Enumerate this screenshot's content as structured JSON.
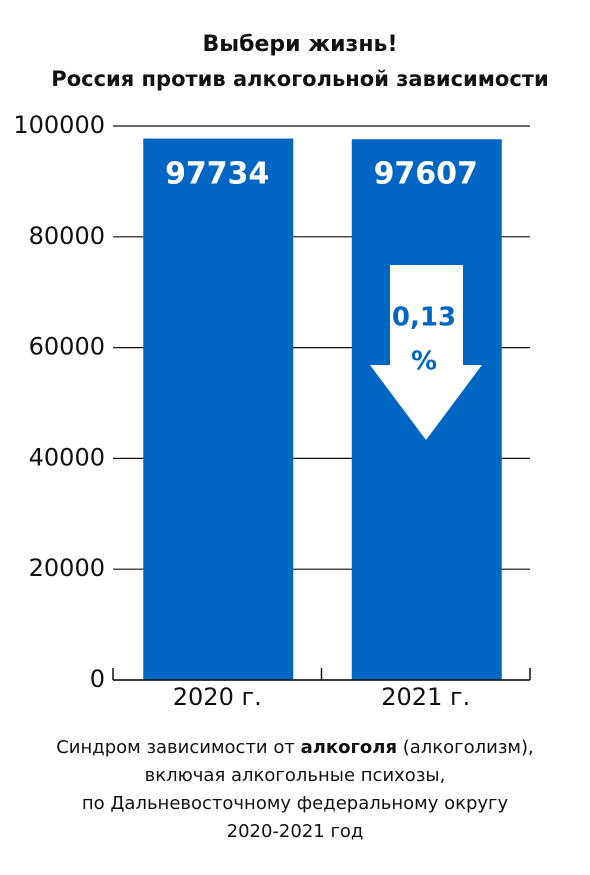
{
  "chart_data": {
    "type": "bar",
    "title": "Выбери жизнь!",
    "subtitle": "Россия против алкогольной зависимости",
    "categories": [
      "2020 г.",
      "2021 г."
    ],
    "values": [
      97734,
      97607
    ],
    "color": "#0066c4",
    "ylim": [
      0,
      100000
    ],
    "yticks": [
      0,
      20000,
      40000,
      60000,
      80000,
      100000
    ],
    "grid": true,
    "annotation": [
      "0,13",
      "%"
    ],
    "caption": [
      "Синдром зависимости  от ",
      "алкоголя",
      " (алкоголизм),",
      "включая алкогольные психозы,",
      "по Дальневосточному федеральному округу",
      "2020-2021 год"
    ]
  }
}
